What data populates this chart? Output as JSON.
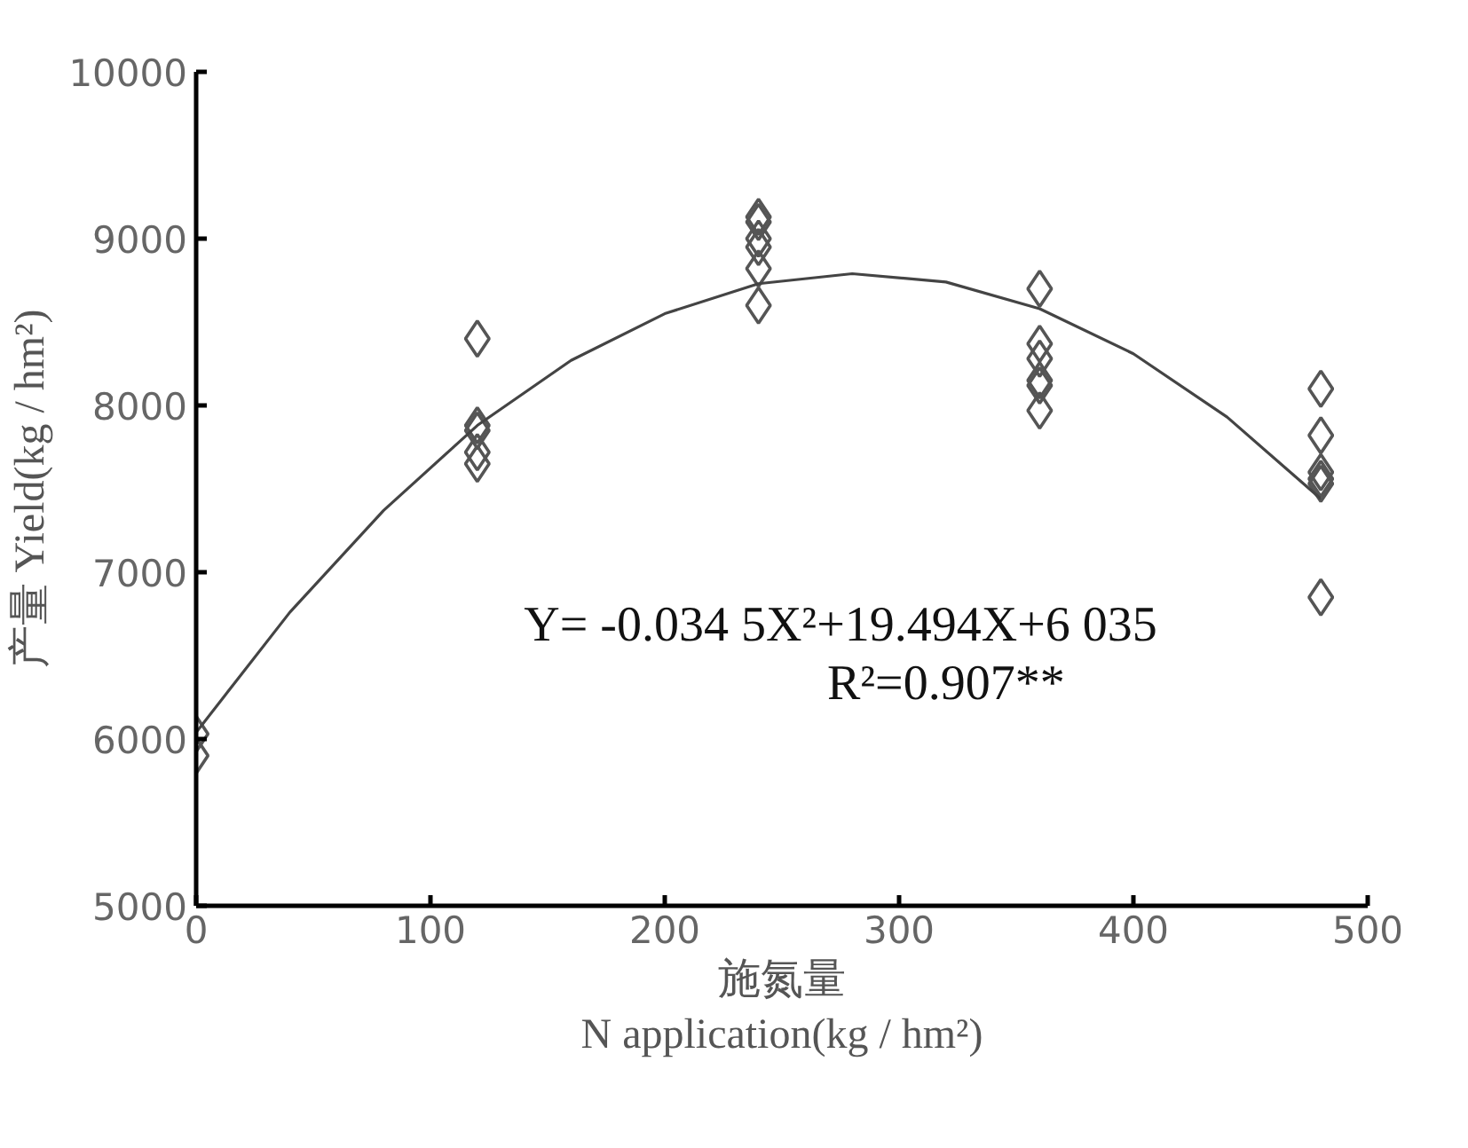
{
  "chart_data": {
    "type": "scatter",
    "xlabel": "施氮量\nN application(kg / hm²)",
    "ylabel": "产量 Yield(kg / hm²)",
    "annotations": [
      "Y= -0.034 5X²+19.494X+6 035",
      "R²=0.907**"
    ],
    "series": [
      {
        "color": "#555555",
        "marker": "diamond",
        "x": [
          0,
          0,
          120,
          120,
          120,
          120,
          120,
          240,
          240,
          240,
          240,
          240,
          240,
          360,
          360,
          360,
          360,
          360,
          360,
          480,
          480,
          480,
          480,
          480,
          480
        ],
        "values": [
          6030,
          5900,
          8400,
          7880,
          7850,
          7720,
          7650,
          9130,
          9100,
          9000,
          8950,
          8820,
          8600,
          8700,
          8370,
          8280,
          8150,
          8120,
          7970,
          8100,
          7820,
          7600,
          7560,
          7530,
          6850
        ]
      },
      {
        "type": "line",
        "color": "#444444",
        "x": [
          0,
          40,
          80,
          120,
          160,
          200,
          240,
          280,
          320,
          360,
          400,
          440,
          480
        ],
        "values": [
          6040,
          6760,
          7370,
          7880,
          8270,
          8550,
          8730,
          8790,
          8740,
          8580,
          8310,
          7930,
          7440
        ]
      }
    ],
    "xlim": [
      0,
      500
    ],
    "xticks": [
      0,
      100,
      200,
      300,
      400,
      500
    ],
    "ylim": [
      5000,
      10000
    ],
    "yticks": [
      5000,
      6000,
      7000,
      8000,
      9000,
      10000
    ],
    "grid": false
  }
}
